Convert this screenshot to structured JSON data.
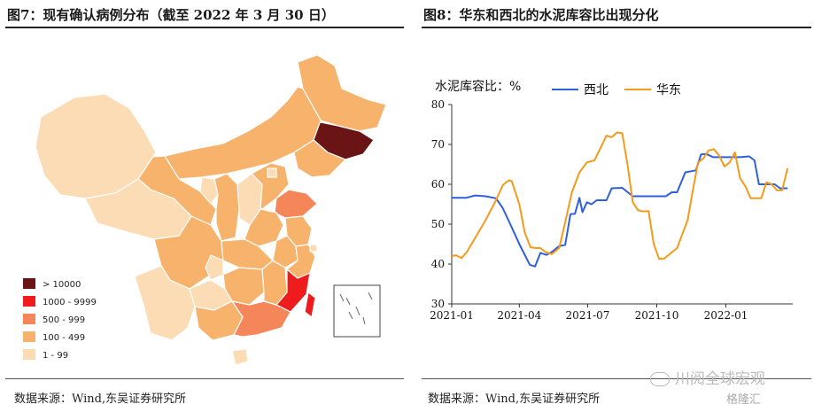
{
  "left_panel": {
    "title": "图7：现有确认病例分布（截至 2022 年 3 月 30 日）",
    "source": "数据来源：Wind,东吴证券研究所",
    "legend": [
      {
        "label": "> 10000",
        "color": "#6b1416"
      },
      {
        "label": "1000 - 9999",
        "color": "#ee1c1c"
      },
      {
        "label": "500 - 999",
        "color": "#f4865a"
      },
      {
        "label": "100 - 499",
        "color": "#f7b26b"
      },
      {
        "label": "1 - 99",
        "color": "#fbdcb4"
      }
    ],
    "regions": [
      {
        "name": "Jilin",
        "bin": 0
      },
      {
        "name": "Fujian",
        "bin": 1
      },
      {
        "name": "Taiwan",
        "bin": 1
      },
      {
        "name": "Shandong",
        "bin": 2
      },
      {
        "name": "Guangdong",
        "bin": 2
      },
      {
        "name": "Heilongjiang",
        "bin": 3
      },
      {
        "name": "Liaoning",
        "bin": 3
      },
      {
        "name": "Inner Mongolia",
        "bin": 3
      },
      {
        "name": "Hebei",
        "bin": 3
      },
      {
        "name": "Gansu",
        "bin": 3
      },
      {
        "name": "Sichuan",
        "bin": 3
      },
      {
        "name": "Shaanxi",
        "bin": 3
      },
      {
        "name": "Henan",
        "bin": 3
      },
      {
        "name": "Hubei",
        "bin": 3
      },
      {
        "name": "Hunan",
        "bin": 3
      },
      {
        "name": "Jiangxi",
        "bin": 3
      },
      {
        "name": "Guangxi",
        "bin": 3
      },
      {
        "name": "Jiangsu",
        "bin": 3
      },
      {
        "name": "Anhui",
        "bin": 3
      },
      {
        "name": "Zhejiang",
        "bin": 3
      },
      {
        "name": "Xinjiang",
        "bin": 4
      },
      {
        "name": "Qinghai",
        "bin": 4
      },
      {
        "name": "Yunnan",
        "bin": 4
      },
      {
        "name": "Guizhou",
        "bin": 4
      },
      {
        "name": "Chongqing",
        "bin": 4
      },
      {
        "name": "Ningxia",
        "bin": 4
      },
      {
        "name": "Shanxi",
        "bin": 4
      },
      {
        "name": "Beijing",
        "bin": 4
      },
      {
        "name": "Shanghai",
        "bin": 4
      },
      {
        "name": "Hainan",
        "bin": 4
      }
    ]
  },
  "right_panel": {
    "title": "图8：华东和西北的水泥库容比出现分化",
    "source": "数据来源：Wind,东吴证券研究所"
  },
  "chart_data": {
    "type": "line",
    "title": "图8：华东和西北的水泥库容比出现分化",
    "ylabel": "水泥库容比：%",
    "ylim": [
      30,
      80
    ],
    "yticks": [
      30,
      40,
      50,
      60,
      70,
      80
    ],
    "xticks": [
      "2021-01",
      "2021-04",
      "2021-07",
      "2021-10",
      "2022-01"
    ],
    "xlim": [
      "2021-01-01",
      "2022-03-31"
    ],
    "grid": false,
    "legend_position": "top",
    "series": [
      {
        "name": "西北",
        "color": "#2e5fdc",
        "points": [
          [
            "2021-01-01",
            56.6
          ],
          [
            "2021-01-20",
            56.6
          ],
          [
            "2021-02-01",
            57.2
          ],
          [
            "2021-02-15",
            57.0
          ],
          [
            "2021-03-01",
            56.5
          ],
          [
            "2021-03-10",
            54.0
          ],
          [
            "2021-03-20",
            50.0
          ],
          [
            "2021-04-01",
            45.0
          ],
          [
            "2021-04-15",
            39.8
          ],
          [
            "2021-04-22",
            39.4
          ],
          [
            "2021-04-29",
            42.8
          ],
          [
            "2021-05-07",
            42.3
          ],
          [
            "2021-05-14",
            43.0
          ],
          [
            "2021-05-24",
            44.5
          ],
          [
            "2021-06-01",
            44.8
          ],
          [
            "2021-06-08",
            52.5
          ],
          [
            "2021-06-14",
            52.6
          ],
          [
            "2021-06-20",
            56.6
          ],
          [
            "2021-06-24",
            53.0
          ],
          [
            "2021-06-30",
            55.5
          ],
          [
            "2021-07-06",
            55.0
          ],
          [
            "2021-07-13",
            56.0
          ],
          [
            "2021-07-26",
            56.0
          ],
          [
            "2021-08-02",
            59.0
          ],
          [
            "2021-08-16",
            59.1
          ],
          [
            "2021-08-30",
            57.0
          ],
          [
            "2021-09-15",
            57.0
          ],
          [
            "2021-10-01",
            57.0
          ],
          [
            "2021-10-13",
            57.0
          ],
          [
            "2021-10-21",
            58.0
          ],
          [
            "2021-10-28",
            58.0
          ],
          [
            "2021-11-08",
            63.0
          ],
          [
            "2021-11-22",
            63.5
          ],
          [
            "2021-11-29",
            67.5
          ],
          [
            "2021-12-06",
            67.6
          ],
          [
            "2021-12-15",
            66.8
          ],
          [
            "2022-01-01",
            66.8
          ],
          [
            "2022-01-20",
            66.8
          ],
          [
            "2022-02-01",
            67.0
          ],
          [
            "2022-02-08",
            66.0
          ],
          [
            "2022-02-14",
            60.0
          ],
          [
            "2022-03-07",
            60.0
          ],
          [
            "2022-03-14",
            59.0
          ],
          [
            "2022-03-24",
            59.0
          ]
        ]
      },
      {
        "name": "华东",
        "color": "#f59a1b",
        "points": [
          [
            "2021-01-01",
            42.0
          ],
          [
            "2021-01-07",
            42.2
          ],
          [
            "2021-01-14",
            41.5
          ],
          [
            "2021-01-21",
            43.0
          ],
          [
            "2021-02-01",
            46.5
          ],
          [
            "2021-02-15",
            51.0
          ],
          [
            "2021-03-01",
            56.0
          ],
          [
            "2021-03-10",
            59.8
          ],
          [
            "2021-03-18",
            61.0
          ],
          [
            "2021-03-22",
            60.8
          ],
          [
            "2021-04-01",
            55.0
          ],
          [
            "2021-04-08",
            48.0
          ],
          [
            "2021-04-16",
            44.2
          ],
          [
            "2021-04-23",
            44.0
          ],
          [
            "2021-04-29",
            44.0
          ],
          [
            "2021-05-06",
            43.0
          ],
          [
            "2021-05-14",
            42.5
          ],
          [
            "2021-05-24",
            44.0
          ],
          [
            "2021-06-01",
            50.5
          ],
          [
            "2021-06-10",
            58.0
          ],
          [
            "2021-06-20",
            63.0
          ],
          [
            "2021-06-30",
            65.5
          ],
          [
            "2021-07-10",
            66.0
          ],
          [
            "2021-07-19",
            69.5
          ],
          [
            "2021-07-26",
            72.2
          ],
          [
            "2021-08-02",
            71.8
          ],
          [
            "2021-08-09",
            73.0
          ],
          [
            "2021-08-16",
            72.8
          ],
          [
            "2021-08-23",
            65.0
          ],
          [
            "2021-08-30",
            55.5
          ],
          [
            "2021-09-06",
            53.5
          ],
          [
            "2021-09-13",
            53.2
          ],
          [
            "2021-09-20",
            53.3
          ],
          [
            "2021-09-27",
            45.0
          ],
          [
            "2021-10-04",
            41.3
          ],
          [
            "2021-10-11",
            41.4
          ],
          [
            "2021-10-18",
            42.5
          ],
          [
            "2021-10-28",
            44.0
          ],
          [
            "2021-11-04",
            47.5
          ],
          [
            "2021-11-11",
            51.0
          ],
          [
            "2021-11-18",
            58.5
          ],
          [
            "2021-11-25",
            65.5
          ],
          [
            "2021-12-02",
            66.5
          ],
          [
            "2021-12-09",
            68.5
          ],
          [
            "2021-12-16",
            68.8
          ],
          [
            "2021-12-23",
            67.2
          ],
          [
            "2021-12-30",
            64.5
          ],
          [
            "2022-01-06",
            65.5
          ],
          [
            "2022-01-13",
            68.0
          ],
          [
            "2022-01-20",
            61.5
          ],
          [
            "2022-01-27",
            59.5
          ],
          [
            "2022-02-03",
            56.5
          ],
          [
            "2022-02-10",
            56.5
          ],
          [
            "2022-02-17",
            56.5
          ],
          [
            "2022-02-24",
            60.5
          ],
          [
            "2022-03-03",
            60.0
          ],
          [
            "2022-03-10",
            58.5
          ],
          [
            "2022-03-17",
            58.5
          ],
          [
            "2022-03-24",
            64.0
          ]
        ]
      }
    ]
  },
  "watermark": {
    "text": "川阅全球宏观",
    "brand": "格隆汇"
  }
}
